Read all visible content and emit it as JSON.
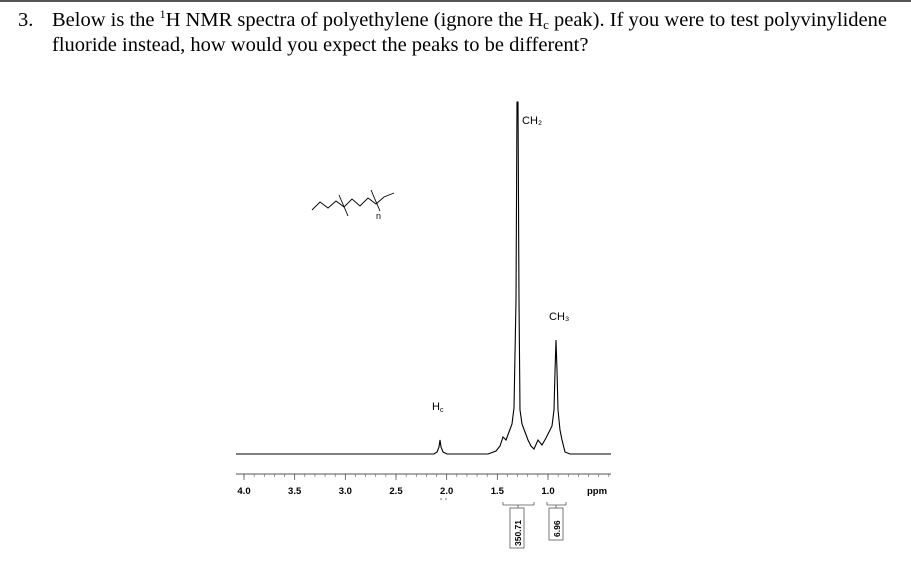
{
  "question": {
    "number": "3.",
    "text_before_superscript": "Below is the ",
    "superscript": "1",
    "text_h": "H NMR spectra of polyethylene (ignore the H",
    "subscript": "c",
    "text_after_subscript": " peak). If you were to test polyvinylidene fluoride instead, how would you expect the peaks to be different?"
  },
  "figure": {
    "structure_repeat_label": "n",
    "peak_labels": {
      "ch2": "CH₂",
      "ch3": "CH₃",
      "hc": "Hc"
    },
    "integrals": [
      "350.71",
      "6.96"
    ],
    "axis_unit": "ppm",
    "colors": {
      "ink": "#000000",
      "axis": "#555555",
      "integral": "#777777"
    }
  },
  "chart_data": {
    "type": "line",
    "title": "",
    "xlabel": "ppm",
    "ylabel": "",
    "xlim": [
      4.15,
      0.0
    ],
    "x_reversed": true,
    "ticks": [
      {
        "value": 4.0,
        "label": "4.0"
      },
      {
        "value": 3.5,
        "label": "3.5"
      },
      {
        "value": 3.0,
        "label": "3.0"
      },
      {
        "value": 2.5,
        "label": "2.5"
      },
      {
        "value": 2.0,
        "label": "2.0"
      },
      {
        "value": 1.5,
        "label": "1.5"
      },
      {
        "value": 1.0,
        "label": "1.0"
      }
    ],
    "peaks": [
      {
        "label": "Hc",
        "shift": 2.0,
        "relative_height": 0.06
      },
      {
        "label": "CH2",
        "shift": 1.25,
        "relative_height": 1.0,
        "integral": "350.71"
      },
      {
        "label": "CH3",
        "shift": 0.87,
        "relative_height": 0.38,
        "integral": "6.96"
      }
    ]
  }
}
